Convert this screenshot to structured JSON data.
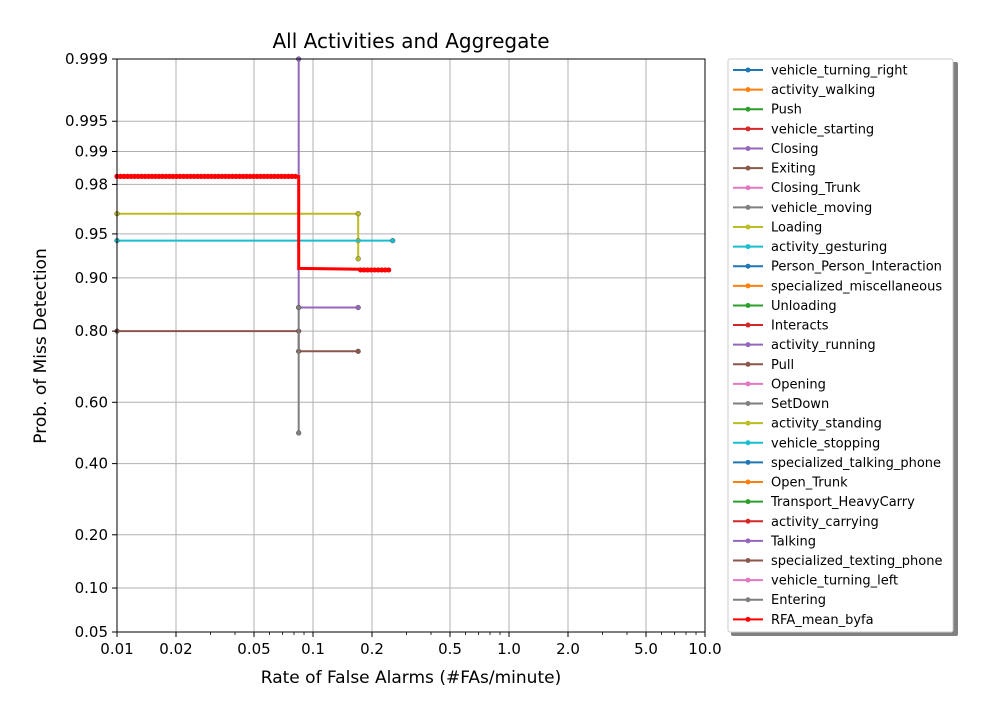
{
  "chart_data": {
    "type": "line",
    "title": "All Activities and Aggregate",
    "xlabel": "Rate of False Alarms (#FAs/minute)",
    "ylabel": "Prob. of Miss Detection",
    "x_scale": "log",
    "y_scale": "normal-deviate",
    "xlim": [
      0.01,
      10.0
    ],
    "ylim": [
      0.05,
      0.999
    ],
    "x_ticks": [
      "0.01",
      "0.02",
      "0.05",
      "0.1",
      "0.2",
      "0.5",
      "1.0",
      "2.0",
      "5.0",
      "10.0"
    ],
    "x_tick_values": [
      0.01,
      0.02,
      0.05,
      0.1,
      0.2,
      0.5,
      1.0,
      2.0,
      5.0,
      10.0
    ],
    "y_ticks": [
      "0.05",
      "0.10",
      "0.20",
      "0.40",
      "0.60",
      "0.80",
      "0.90",
      "0.95",
      "0.98",
      "0.99",
      "0.995",
      "0.999"
    ],
    "y_tick_values": [
      0.05,
      0.1,
      0.2,
      0.4,
      0.6,
      0.8,
      0.9,
      0.95,
      0.98,
      0.99,
      0.995,
      0.999
    ],
    "grid": true,
    "legend_position": "outside-right",
    "series": [
      {
        "name": "vehicle_turning_right",
        "color": "#1f77b4",
        "points": []
      },
      {
        "name": "activity_walking",
        "color": "#ff7f0e",
        "points": []
      },
      {
        "name": "Push",
        "color": "#2ca02c",
        "points": []
      },
      {
        "name": "vehicle_starting",
        "color": "#d62728",
        "points": []
      },
      {
        "name": "Closing",
        "color": "#9467bd",
        "points": [
          [
            0.0845,
            0.999
          ],
          [
            0.0845,
            0.85
          ],
          [
            0.17,
            0.85
          ]
        ]
      },
      {
        "name": "Exiting",
        "color": "#8c564b",
        "points": [
          [
            0.01,
            0.8
          ],
          [
            0.0845,
            0.8
          ],
          [
            0.0845,
            0.75
          ],
          [
            0.17,
            0.75
          ]
        ]
      },
      {
        "name": "Closing_Trunk",
        "color": "#e377c2",
        "points": []
      },
      {
        "name": "vehicle_moving",
        "color": "#7f7f7f",
        "points": []
      },
      {
        "name": "Loading",
        "color": "#bcbd22",
        "points": [
          [
            0.01,
            0.965
          ],
          [
            0.17,
            0.965
          ],
          [
            0.17,
            0.944
          ],
          [
            0.17,
            0.925
          ]
        ]
      },
      {
        "name": "activity_gesturing",
        "color": "#17becf",
        "points": [
          [
            0.01,
            0.944
          ],
          [
            0.255,
            0.944
          ]
        ]
      },
      {
        "name": "Person_Person_Interaction",
        "color": "#1f77b4",
        "points": []
      },
      {
        "name": "specialized_miscellaneous",
        "color": "#ff7f0e",
        "points": []
      },
      {
        "name": "Unloading",
        "color": "#2ca02c",
        "points": []
      },
      {
        "name": "Interacts",
        "color": "#d62728",
        "points": []
      },
      {
        "name": "activity_running",
        "color": "#9467bd",
        "points": []
      },
      {
        "name": "Pull",
        "color": "#8c564b",
        "points": []
      },
      {
        "name": "Opening",
        "color": "#e377c2",
        "points": []
      },
      {
        "name": "SetDown",
        "color": "#7f7f7f",
        "points": [
          [
            0.0845,
            0.85
          ],
          [
            0.0845,
            0.5
          ]
        ]
      },
      {
        "name": "activity_standing",
        "color": "#bcbd22",
        "points": []
      },
      {
        "name": "vehicle_stopping",
        "color": "#17becf",
        "points": []
      },
      {
        "name": "specialized_talking_phone",
        "color": "#1f77b4",
        "points": []
      },
      {
        "name": "Open_Trunk",
        "color": "#ff7f0e",
        "points": []
      },
      {
        "name": "Transport_HeavyCarry",
        "color": "#2ca02c",
        "points": []
      },
      {
        "name": "activity_carrying",
        "color": "#d62728",
        "points": []
      },
      {
        "name": "Talking",
        "color": "#9467bd",
        "points": []
      },
      {
        "name": "specialized_texting_phone",
        "color": "#8c564b",
        "points": []
      },
      {
        "name": "vehicle_turning_left",
        "color": "#e377c2",
        "points": []
      },
      {
        "name": "Entering",
        "color": "#7f7f7f",
        "points": []
      },
      {
        "name": "RFA_mean_byfa",
        "color": "#ff0000",
        "dense": true,
        "points": [
          [
            0.01,
            0.983
          ],
          [
            0.0845,
            0.983
          ],
          [
            0.0845,
            0.913
          ],
          [
            0.175,
            0.912
          ],
          [
            0.175,
            0.911
          ],
          [
            0.25,
            0.911
          ]
        ]
      }
    ]
  }
}
